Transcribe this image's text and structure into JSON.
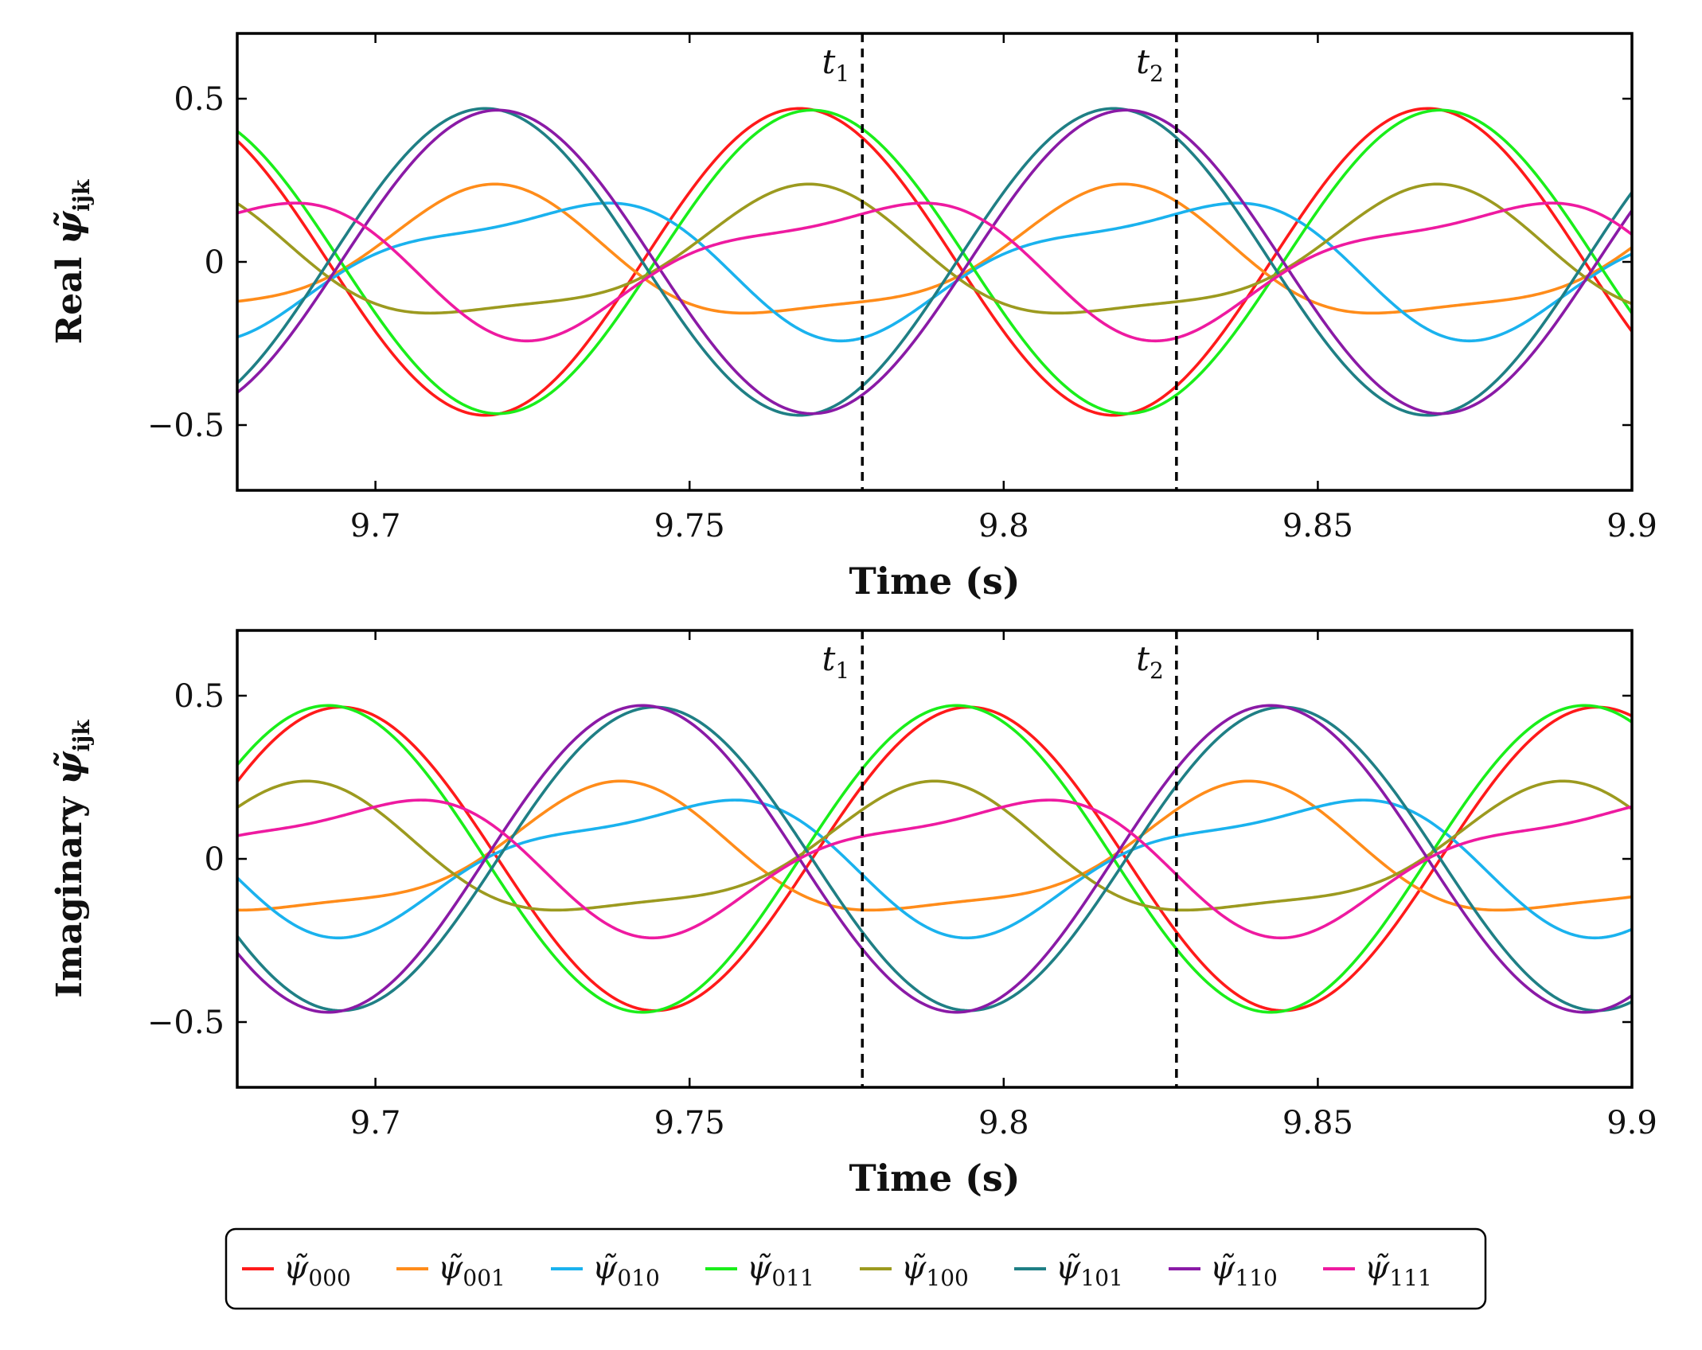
{
  "chart_data": [
    {
      "type": "line",
      "panel": "top",
      "ylabel_prefix": "Real",
      "ylabel_symbol": "ψ̃",
      "ylabel_sub": "ijk",
      "xlabel": "Time (s)",
      "xlim": [
        9.678,
        9.9
      ],
      "ylim": [
        -0.7,
        0.7
      ],
      "xticks": [
        "9.7",
        "9.75",
        "9.8",
        "9.85",
        "9.9"
      ],
      "xtick_values": [
        9.7,
        9.75,
        9.8,
        9.85,
        9.9
      ],
      "yticks": [
        "0.5",
        "0",
        "−0.5"
      ],
      "ytick_values": [
        0.5,
        0,
        -0.5
      ],
      "markers": [
        {
          "t": 9.7775,
          "label": "t",
          "sub": "1"
        },
        {
          "t": 9.8275,
          "label": "t",
          "sub": "2"
        }
      ],
      "period": 0.1,
      "series": [
        {
          "key": "000",
          "color": "#ff1a1a",
          "amp": 0.47,
          "phase_t": 9.7675,
          "h2": 0,
          "p2": 0
        },
        {
          "key": "001",
          "color": "#ff8c1a",
          "amp": 0.19,
          "phase_t": 9.7175,
          "h2": 0.05,
          "p2": 1.2
        },
        {
          "key": "010",
          "color": "#1ab2ee",
          "amp": 0.19,
          "phase_t": 9.7275,
          "h2": 0.06,
          "p2": -0.8
        },
        {
          "key": "011",
          "color": "#1aee1a",
          "amp": 0.465,
          "phase_t": 9.7695,
          "h2": 0,
          "p2": 0
        },
        {
          "key": "100",
          "color": "#9c9a1f",
          "amp": 0.19,
          "phase_t": 9.7675,
          "h2": 0.05,
          "p2": 1.2
        },
        {
          "key": "101",
          "color": "#1f7f85",
          "amp": 0.47,
          "phase_t": 9.7175,
          "h2": 0,
          "p2": 0
        },
        {
          "key": "110",
          "color": "#8a1aa6",
          "amp": 0.465,
          "phase_t": 9.7195,
          "h2": 0,
          "p2": 0
        },
        {
          "key": "111",
          "color": "#ee1aa0",
          "amp": 0.19,
          "phase_t": 9.7775,
          "h2": 0.06,
          "p2": -0.8
        }
      ]
    },
    {
      "type": "line",
      "panel": "bottom",
      "ylabel_prefix": "Imaginary",
      "ylabel_symbol": "ψ̃",
      "ylabel_sub": "ijk",
      "xlabel": "Time (s)",
      "xlim": [
        9.678,
        9.9
      ],
      "ylim": [
        -0.7,
        0.7
      ],
      "xticks": [
        "9.7",
        "9.75",
        "9.8",
        "9.85",
        "9.9"
      ],
      "xtick_values": [
        9.7,
        9.75,
        9.8,
        9.85,
        9.9
      ],
      "yticks": [
        "0.5",
        "0",
        "−0.5"
      ],
      "ytick_values": [
        0.5,
        0,
        -0.5
      ],
      "markers": [
        {
          "t": 9.7775,
          "label": "t",
          "sub": "1"
        },
        {
          "t": 9.8275,
          "label": "t",
          "sub": "2"
        }
      ],
      "period": 0.1,
      "series": [
        {
          "key": "000",
          "color": "#ff1a1a",
          "amp": 0.465,
          "phase_t": 9.6945,
          "h2": 0,
          "p2": 0
        },
        {
          "key": "001",
          "color": "#ff8c1a",
          "amp": 0.19,
          "phase_t": 9.7375,
          "h2": 0.05,
          "p2": 1.2
        },
        {
          "key": "010",
          "color": "#1ab2ee",
          "amp": 0.19,
          "phase_t": 9.7475,
          "h2": 0.06,
          "p2": -0.8
        },
        {
          "key": "011",
          "color": "#1aee1a",
          "amp": 0.47,
          "phase_t": 9.6925,
          "h2": 0,
          "p2": 0
        },
        {
          "key": "100",
          "color": "#9c9a1f",
          "amp": 0.19,
          "phase_t": 9.6875,
          "h2": 0.05,
          "p2": 1.2
        },
        {
          "key": "101",
          "color": "#1f7f85",
          "amp": 0.465,
          "phase_t": 9.7445,
          "h2": 0,
          "p2": 0
        },
        {
          "key": "110",
          "color": "#8a1aa6",
          "amp": 0.47,
          "phase_t": 9.7425,
          "h2": 0,
          "p2": 0
        },
        {
          "key": "111",
          "color": "#ee1aa0",
          "amp": 0.19,
          "phase_t": 9.6975,
          "h2": 0.06,
          "p2": -0.8
        }
      ]
    }
  ],
  "legend": {
    "symbol": "ψ̃",
    "entries": [
      {
        "sub": "000",
        "color": "#ff1a1a"
      },
      {
        "sub": "001",
        "color": "#ff8c1a"
      },
      {
        "sub": "010",
        "color": "#1ab2ee"
      },
      {
        "sub": "011",
        "color": "#1aee1a"
      },
      {
        "sub": "100",
        "color": "#9c9a1f"
      },
      {
        "sub": "101",
        "color": "#1f7f85"
      },
      {
        "sub": "110",
        "color": "#8a1aa6"
      },
      {
        "sub": "111",
        "color": "#ee1aa0"
      }
    ]
  }
}
